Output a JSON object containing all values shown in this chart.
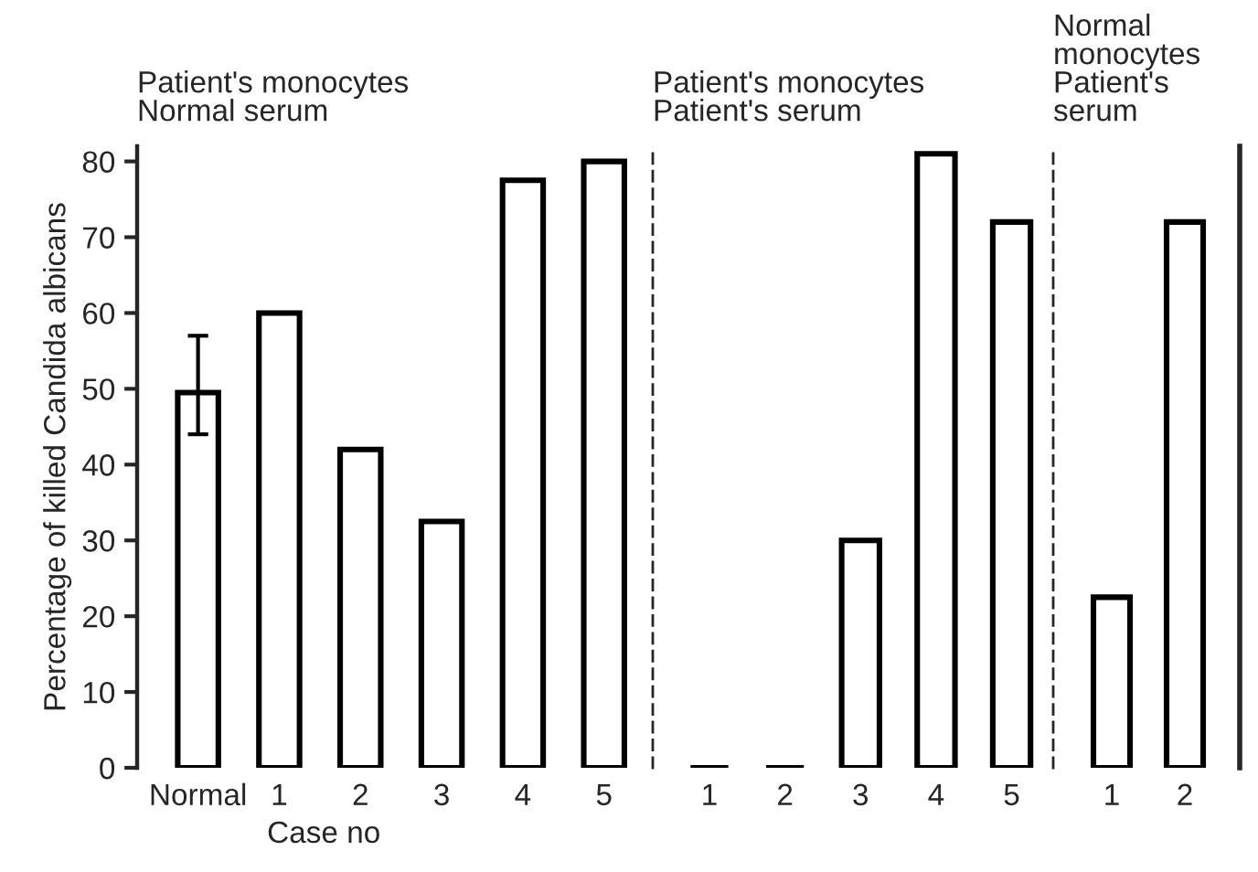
{
  "chart_data": [
    {
      "type": "bar",
      "title": "Patient's monocytes\nNormal serum",
      "ylabel": "Percentage of killed Candida albicans",
      "xlabel": "Case no",
      "categories": [
        "Normal",
        "1",
        "2",
        "3",
        "4",
        "5"
      ],
      "values": [
        49.5,
        60,
        42,
        32.5,
        77.5,
        80
      ],
      "errors": [
        [
          44,
          57
        ],
        null,
        null,
        null,
        null,
        null
      ],
      "color": "#000000",
      "ylim": [
        0,
        82
      ],
      "yticks": [
        0,
        10,
        20,
        30,
        40,
        50,
        60,
        70,
        80
      ],
      "grid": false
    },
    {
      "type": "bar",
      "title": "Patient's monocytes\nPatient's serum",
      "categories": [
        "1",
        "2",
        "3",
        "4",
        "5"
      ],
      "values": [
        0,
        0,
        30,
        81,
        72
      ],
      "color": "#000000",
      "ylim": [
        0,
        82
      ],
      "tick_labels": "x",
      "grid": false
    },
    {
      "type": "bar",
      "title": "Normal\nmonocytes\nPatient's\nserum",
      "categories": [
        "1",
        "2"
      ],
      "values": [
        22.5,
        72
      ],
      "color": "#000000",
      "ylim": [
        0,
        82
      ],
      "tick_labels": "x",
      "grid": false
    }
  ]
}
